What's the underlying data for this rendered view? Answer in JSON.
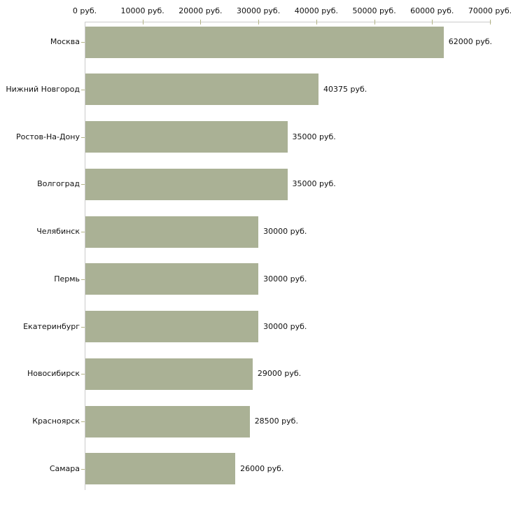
{
  "chart_data": {
    "type": "bar",
    "orientation": "horizontal",
    "title": "",
    "xlabel": "",
    "ylabel": "",
    "grid": false,
    "xlim": [
      0,
      70000
    ],
    "x_tick_values": [
      0,
      10000,
      20000,
      30000,
      40000,
      50000,
      60000,
      70000
    ],
    "x_tick_labels": [
      "0 руб.",
      "10000 руб.",
      "20000 руб.",
      "30000 руб.",
      "40000 руб.",
      "50000 руб.",
      "60000 руб.",
      "70000 руб."
    ],
    "categories": [
      "Москва",
      "Нижний Новгород",
      "Ростов-На-Дону",
      "Волгоград",
      "Челябинск",
      "Пермь",
      "Екатеринбург",
      "Новосибирск",
      "Красноярск",
      "Самара"
    ],
    "values": [
      62000,
      40375,
      35000,
      35000,
      30000,
      30000,
      30000,
      29000,
      28500,
      26000
    ],
    "value_labels": [
      "62000 руб.",
      "40375 руб.",
      "35000 руб.",
      "35000 руб.",
      "30000 руб.",
      "30000 руб.",
      "30000 руб.",
      "29000 руб.",
      "28500 руб.",
      "26000 руб."
    ],
    "colors": {
      "bar": "#aab195",
      "axis_line": "#cccccc",
      "tick": "#b3b486",
      "text": "#111111",
      "background": "#ffffff"
    },
    "value_label_position": "right-of-bar",
    "x_axis_position": "top"
  }
}
